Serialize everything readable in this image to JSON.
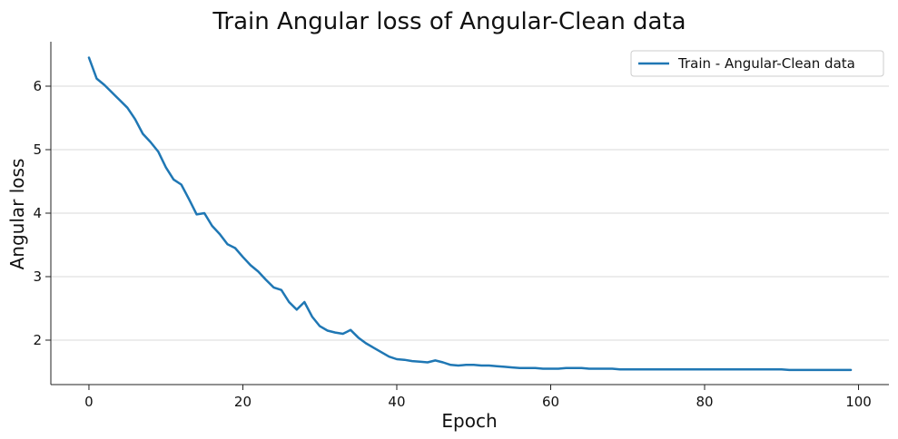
{
  "chart_data": {
    "type": "line",
    "title": "Train Angular loss of Angular-Clean data",
    "xlabel": "Epoch",
    "ylabel": "Angular loss",
    "xlim": [
      -4.95,
      103.95
    ],
    "ylim": [
      1.3,
      6.7
    ],
    "xticks": [
      0,
      20,
      40,
      60,
      80,
      100
    ],
    "yticks": [
      2,
      3,
      4,
      5,
      6
    ],
    "grid": {
      "x": false,
      "y": true
    },
    "legend_position": "upper right",
    "series": [
      {
        "name": "Train - Angular-Clean data",
        "color": "#1f77b4",
        "x": [
          0,
          1,
          2,
          3,
          4,
          5,
          6,
          7,
          8,
          9,
          10,
          11,
          12,
          13,
          14,
          15,
          16,
          17,
          18,
          19,
          20,
          21,
          22,
          23,
          24,
          25,
          26,
          27,
          28,
          29,
          30,
          31,
          32,
          33,
          34,
          35,
          36,
          37,
          38,
          39,
          40,
          41,
          42,
          43,
          44,
          45,
          46,
          47,
          48,
          49,
          50,
          51,
          52,
          53,
          54,
          55,
          56,
          57,
          58,
          59,
          60,
          61,
          62,
          63,
          64,
          65,
          66,
          67,
          68,
          69,
          70,
          71,
          72,
          73,
          74,
          75,
          76,
          77,
          78,
          79,
          80,
          81,
          82,
          83,
          84,
          85,
          86,
          87,
          88,
          89,
          90,
          91,
          92,
          93,
          94,
          95,
          96,
          97,
          98,
          99
        ],
        "values": [
          6.45,
          6.12,
          6.02,
          5.9,
          5.78,
          5.66,
          5.48,
          5.25,
          5.12,
          4.97,
          4.72,
          4.53,
          4.45,
          4.22,
          3.98,
          4.0,
          3.8,
          3.67,
          3.51,
          3.45,
          3.31,
          3.18,
          3.08,
          2.95,
          2.83,
          2.79,
          2.6,
          2.48,
          2.6,
          2.37,
          2.22,
          2.15,
          2.12,
          2.1,
          2.16,
          2.04,
          1.95,
          1.88,
          1.81,
          1.74,
          1.7,
          1.69,
          1.67,
          1.66,
          1.65,
          1.68,
          1.65,
          1.61,
          1.6,
          1.61,
          1.61,
          1.6,
          1.6,
          1.59,
          1.58,
          1.57,
          1.56,
          1.56,
          1.56,
          1.55,
          1.55,
          1.55,
          1.56,
          1.56,
          1.56,
          1.55,
          1.55,
          1.55,
          1.55,
          1.54,
          1.54,
          1.54,
          1.54,
          1.54,
          1.54,
          1.54,
          1.54,
          1.54,
          1.54,
          1.54,
          1.54,
          1.54,
          1.54,
          1.54,
          1.54,
          1.54,
          1.54,
          1.54,
          1.54,
          1.54,
          1.54,
          1.53,
          1.53,
          1.53,
          1.53,
          1.53,
          1.53,
          1.53,
          1.53,
          1.53
        ]
      }
    ]
  }
}
